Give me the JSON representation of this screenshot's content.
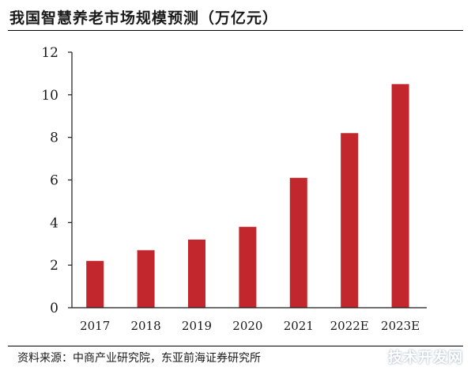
{
  "header": {
    "title": "我国智慧养老市场规模预测（万亿元）"
  },
  "footer": {
    "source": "资料来源：中商产业研究院，东亚前海证券研究所",
    "watermark": "技术开发网"
  },
  "colors": {
    "bar": "#c1272d",
    "axis": "#1a1a1a",
    "text": "#1a1a1a"
  },
  "chart_data": {
    "type": "bar",
    "categories": [
      "2017",
      "2018",
      "2019",
      "2020",
      "2021",
      "2022E",
      "2023E"
    ],
    "values": [
      2.2,
      2.7,
      3.2,
      3.8,
      6.1,
      8.2,
      10.5
    ],
    "ylim": [
      0,
      12
    ],
    "yticks": [
      0,
      2,
      4,
      6,
      8,
      10,
      12
    ],
    "grid": false,
    "legend": "none"
  }
}
